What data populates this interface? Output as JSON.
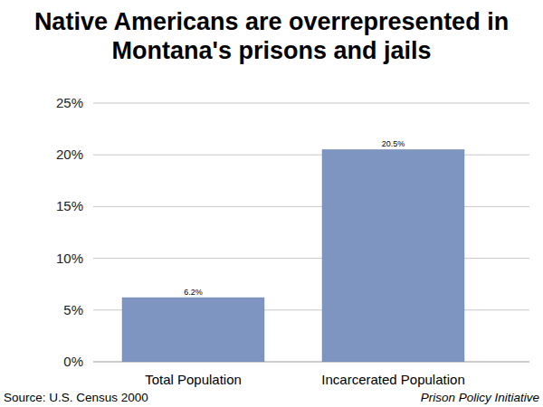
{
  "chart_data": {
    "type": "bar",
    "title": "Native Americans are overrepresented in Montana's prisons and jails",
    "categories": [
      "Total Population",
      "Incarcerated Population"
    ],
    "values": [
      6.2,
      20.5
    ],
    "value_labels": [
      "6.2%",
      "20.5%"
    ],
    "color": "#7d95c0",
    "ylim": [
      0,
      25
    ],
    "yticks": [
      {
        "value": 0,
        "label": "0%"
      },
      {
        "value": 5,
        "label": "5%"
      },
      {
        "value": 10,
        "label": "10%"
      },
      {
        "value": 15,
        "label": "15%"
      },
      {
        "value": 20,
        "label": "20%"
      },
      {
        "value": 25,
        "label": "25%"
      }
    ],
    "grid": true,
    "data_labels": true,
    "annotations": [
      "Source: U.S. Census 2000",
      "Prison Policy Initiative"
    ]
  }
}
